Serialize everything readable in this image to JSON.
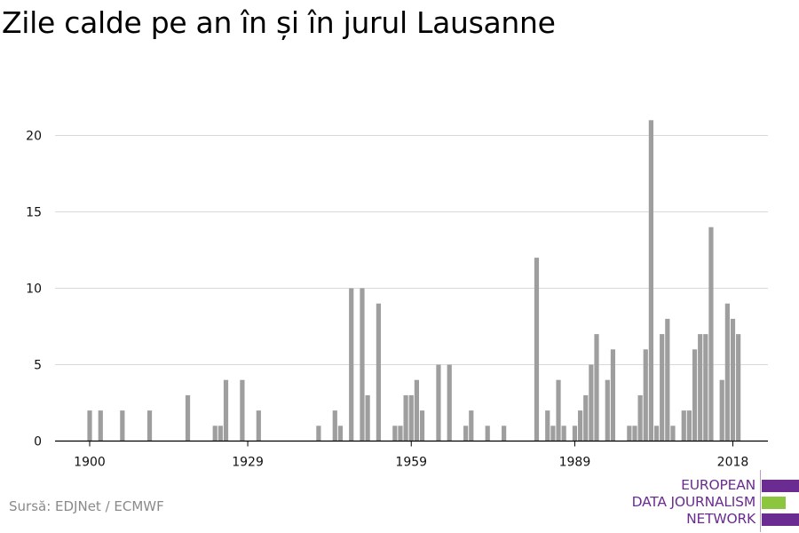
{
  "title": "Zile calde pe an în și în jurul Lausanne",
  "source": "Sursă: EDJNet / ECMWF",
  "logo": {
    "line1": "EUROPEAN",
    "line2": "DATA JOURNALISM",
    "line3": "NETWORK",
    "colors": [
      "#6b2c91",
      "#8cc63f",
      "#6b2c91"
    ]
  },
  "colors": {
    "bar": "#9e9e9e",
    "grid": "#d9d9d9",
    "axis": "#000000"
  },
  "chart_data": {
    "type": "bar",
    "title": "Zile calde pe an în și în jurul Lausanne",
    "xlabel": "",
    "ylabel": "",
    "ylim": [
      0,
      22
    ],
    "xlim": [
      1900,
      2018
    ],
    "yticks": [
      0,
      5,
      10,
      15,
      20
    ],
    "xticks": [
      1900,
      1929,
      1959,
      1989,
      2018
    ],
    "grid": true,
    "x": [
      1900,
      1902,
      1906,
      1911,
      1918,
      1923,
      1924,
      1925,
      1928,
      1931,
      1942,
      1945,
      1946,
      1948,
      1950,
      1951,
      1953,
      1956,
      1957,
      1958,
      1959,
      1960,
      1961,
      1964,
      1966,
      1969,
      1970,
      1973,
      1976,
      1982,
      1984,
      1985,
      1986,
      1987,
      1989,
      1990,
      1991,
      1992,
      1993,
      1995,
      1996,
      1999,
      2000,
      2001,
      2002,
      2003,
      2004,
      2005,
      2006,
      2007,
      2009,
      2010,
      2011,
      2012,
      2013,
      2014,
      2016,
      2017,
      2018,
      2019
    ],
    "values": [
      2,
      2,
      2,
      2,
      3,
      1,
      1,
      4,
      4,
      2,
      1,
      2,
      1,
      10,
      10,
      3,
      9,
      1,
      1,
      3,
      3,
      4,
      2,
      5,
      5,
      1,
      2,
      1,
      1,
      12,
      2,
      1,
      4,
      1,
      1,
      2,
      3,
      5,
      7,
      4,
      6,
      1,
      1,
      3,
      6,
      21,
      1,
      7,
      8,
      1,
      2,
      2,
      6,
      7,
      7,
      14,
      4,
      9,
      8,
      7
    ]
  }
}
